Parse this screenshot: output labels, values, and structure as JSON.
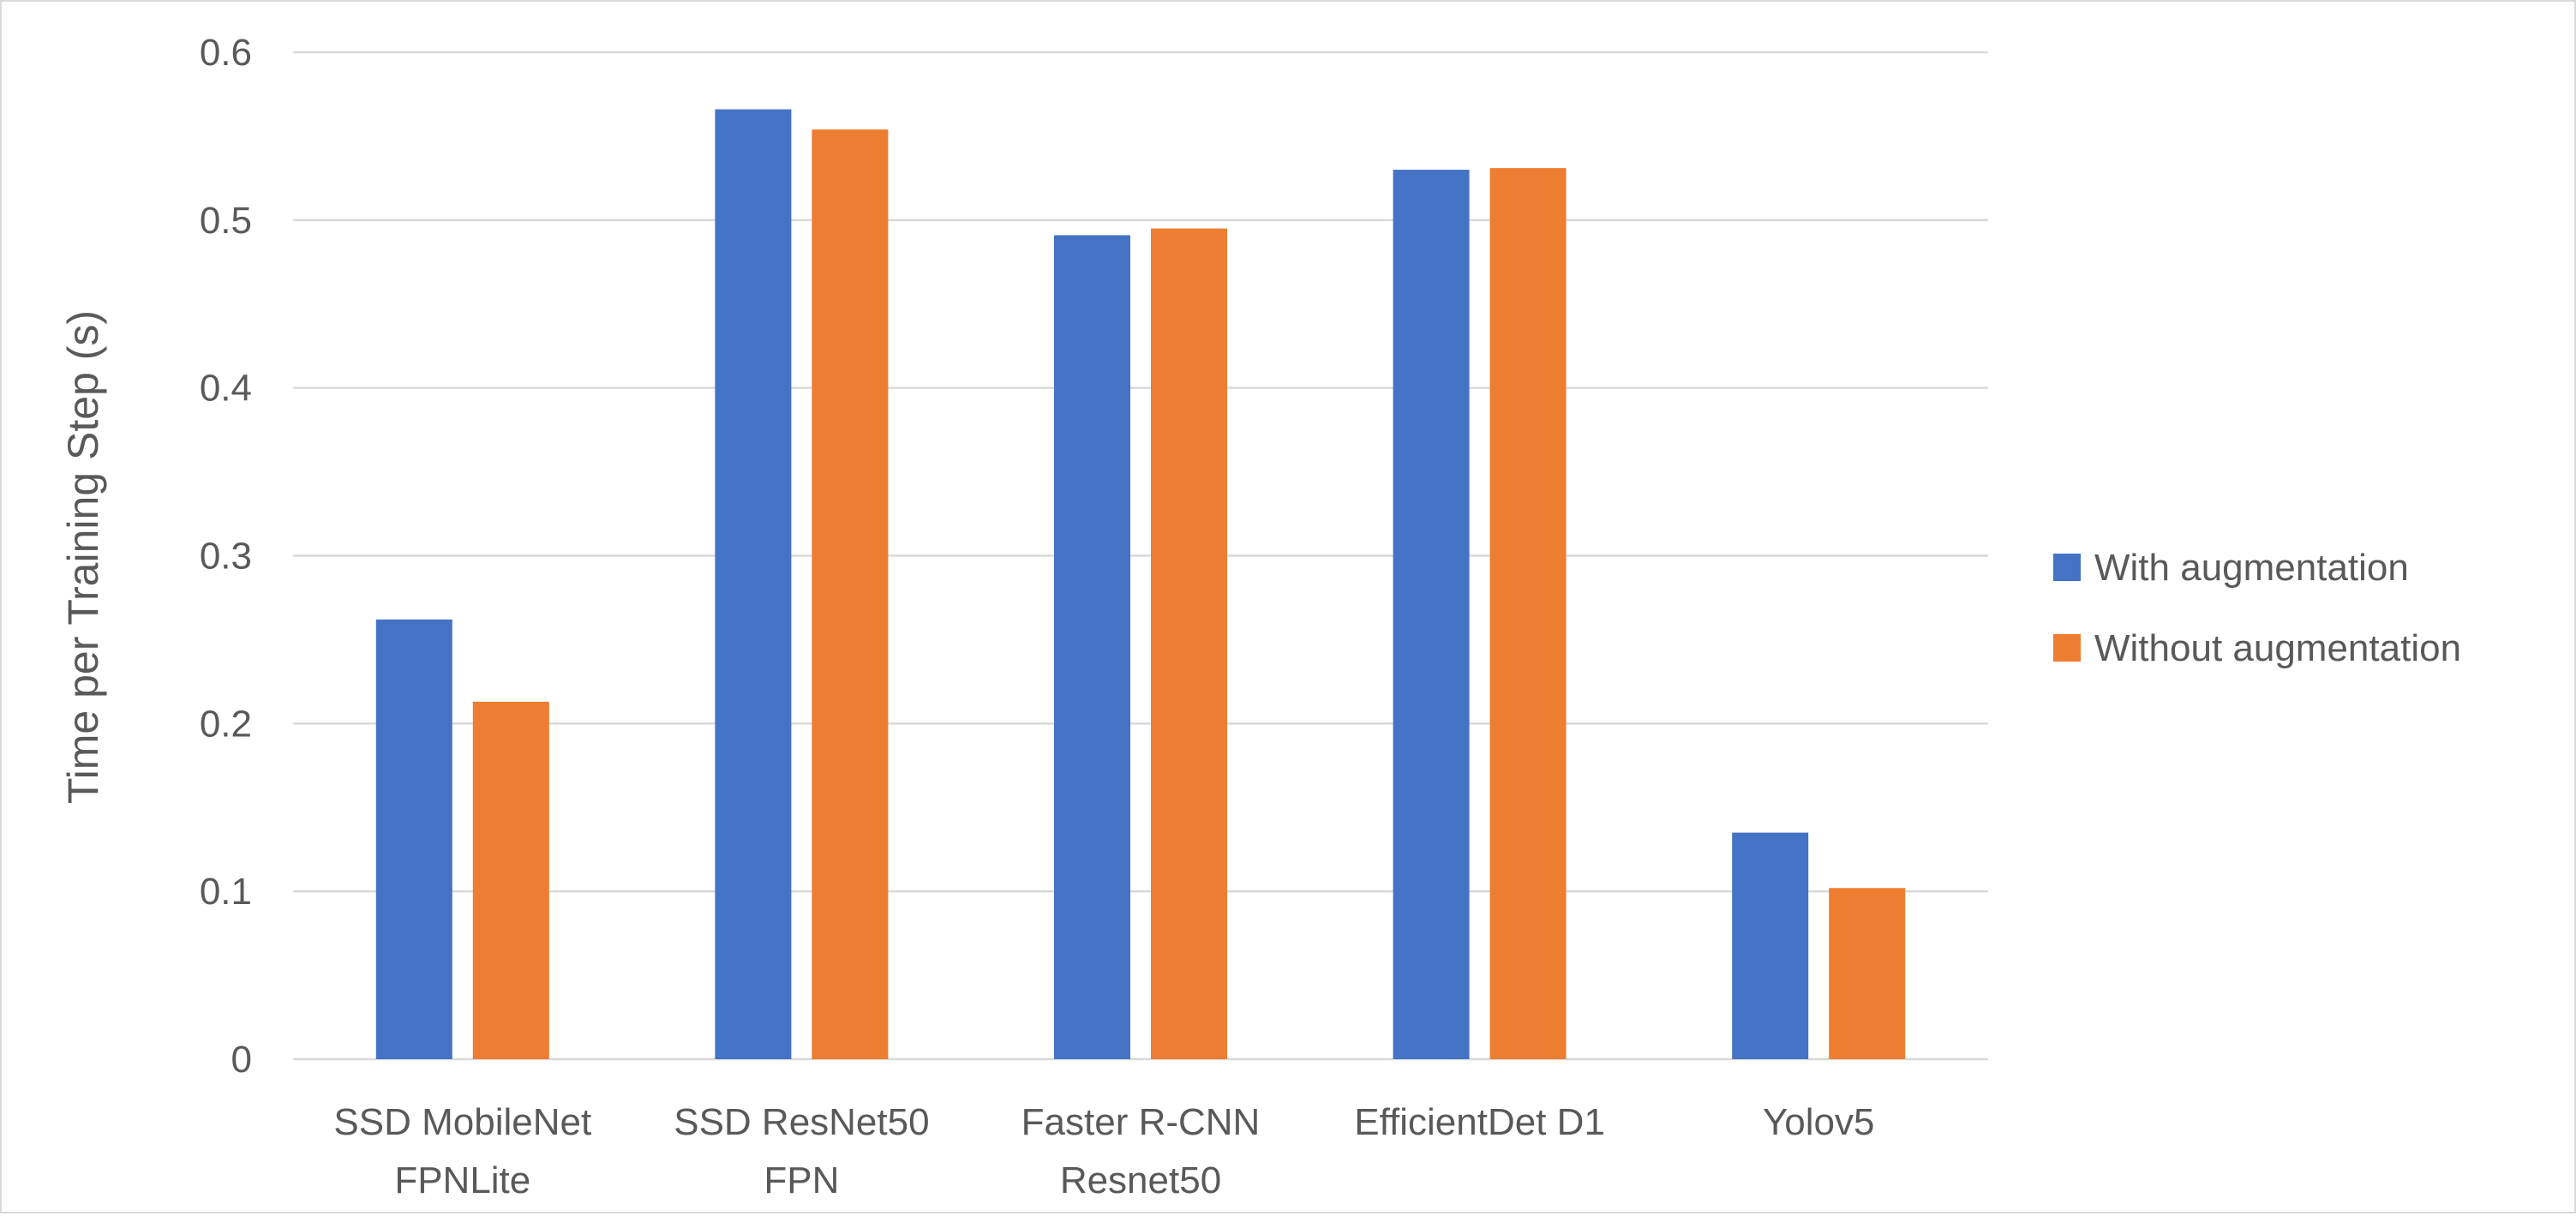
{
  "chart_data": {
    "type": "bar",
    "categories": [
      [
        "SSD MobileNet",
        "FPNLite"
      ],
      [
        "SSD ResNet50",
        "FPN"
      ],
      [
        "Faster R-CNN",
        "Resnet50"
      ],
      [
        "EfficientDet D1"
      ],
      [
        "Yolov5"
      ]
    ],
    "series": [
      {
        "name": "With augmentation",
        "color": "#4472C4",
        "values": [
          0.262,
          0.566,
          0.491,
          0.53,
          0.135
        ]
      },
      {
        "name": "Without augmentation",
        "color": "#ED7D31",
        "values": [
          0.213,
          0.554,
          0.495,
          0.531,
          0.102
        ]
      }
    ],
    "title": "",
    "xlabel": "",
    "ylabel": "Time per Training Step (s)",
    "ylim": [
      0,
      0.6
    ],
    "yticks": [
      0,
      0.1,
      0.2,
      0.3,
      0.4,
      0.5,
      0.6
    ],
    "ytick_labels": [
      "0",
      "0.1",
      "0.2",
      "0.3",
      "0.4",
      "0.5",
      "0.6"
    ],
    "grid": true,
    "legend_position": "right"
  }
}
